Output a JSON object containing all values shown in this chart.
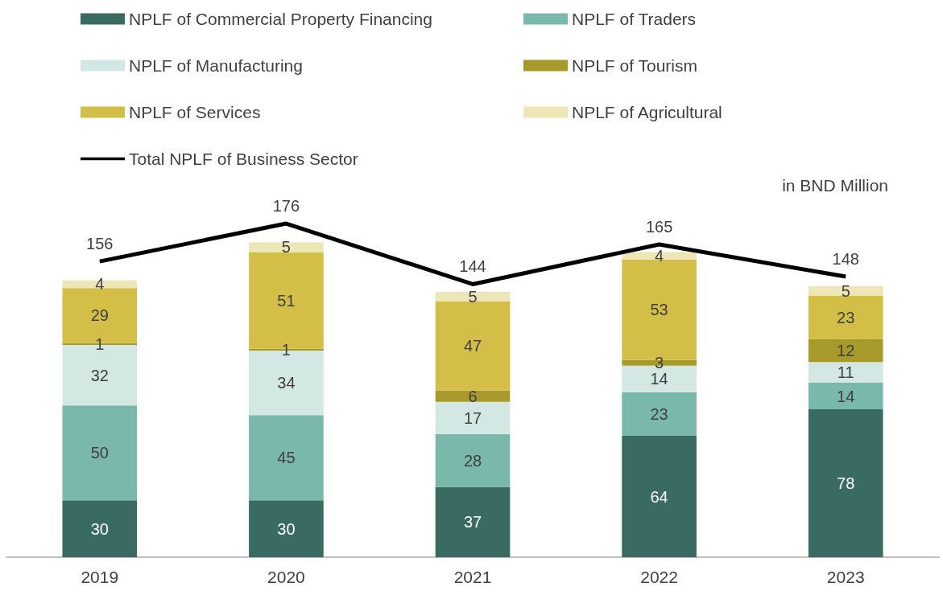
{
  "chart_data": {
    "type": "bar",
    "stacked": true,
    "data_labels": true,
    "legend": "top",
    "annotations": [
      "in BND Million"
    ],
    "categories": [
      "2019",
      "2020",
      "2021",
      "2022",
      "2023"
    ],
    "series": [
      {
        "name": "NPLF of Commercial Property Financing",
        "color": "#3a6b63",
        "values": [
          30,
          30,
          37,
          64,
          78
        ]
      },
      {
        "name": "NPLF of Traders",
        "color": "#79b8aa",
        "values": [
          50,
          45,
          28,
          23,
          14
        ]
      },
      {
        "name": "NPLF of Manufacturing",
        "color": "#d3e7e3",
        "values": [
          32,
          34,
          17,
          14,
          11
        ]
      },
      {
        "name": "NPLF of Tourism",
        "color": "#a89a2a",
        "values": [
          1,
          1,
          6,
          3,
          12
        ]
      },
      {
        "name": "NPLF of Services",
        "color": "#d3bf48",
        "values": [
          29,
          51,
          47,
          53,
          23
        ]
      },
      {
        "name": "NPLF of Agricultural",
        "color": "#ede6b6",
        "values": [
          4,
          5,
          5,
          4,
          5
        ]
      },
      {
        "name": "Total NPLF of Business Sector",
        "type": "line",
        "color": "#000000",
        "marker": "none",
        "values": [
          156,
          176,
          144,
          165,
          148
        ]
      }
    ]
  }
}
